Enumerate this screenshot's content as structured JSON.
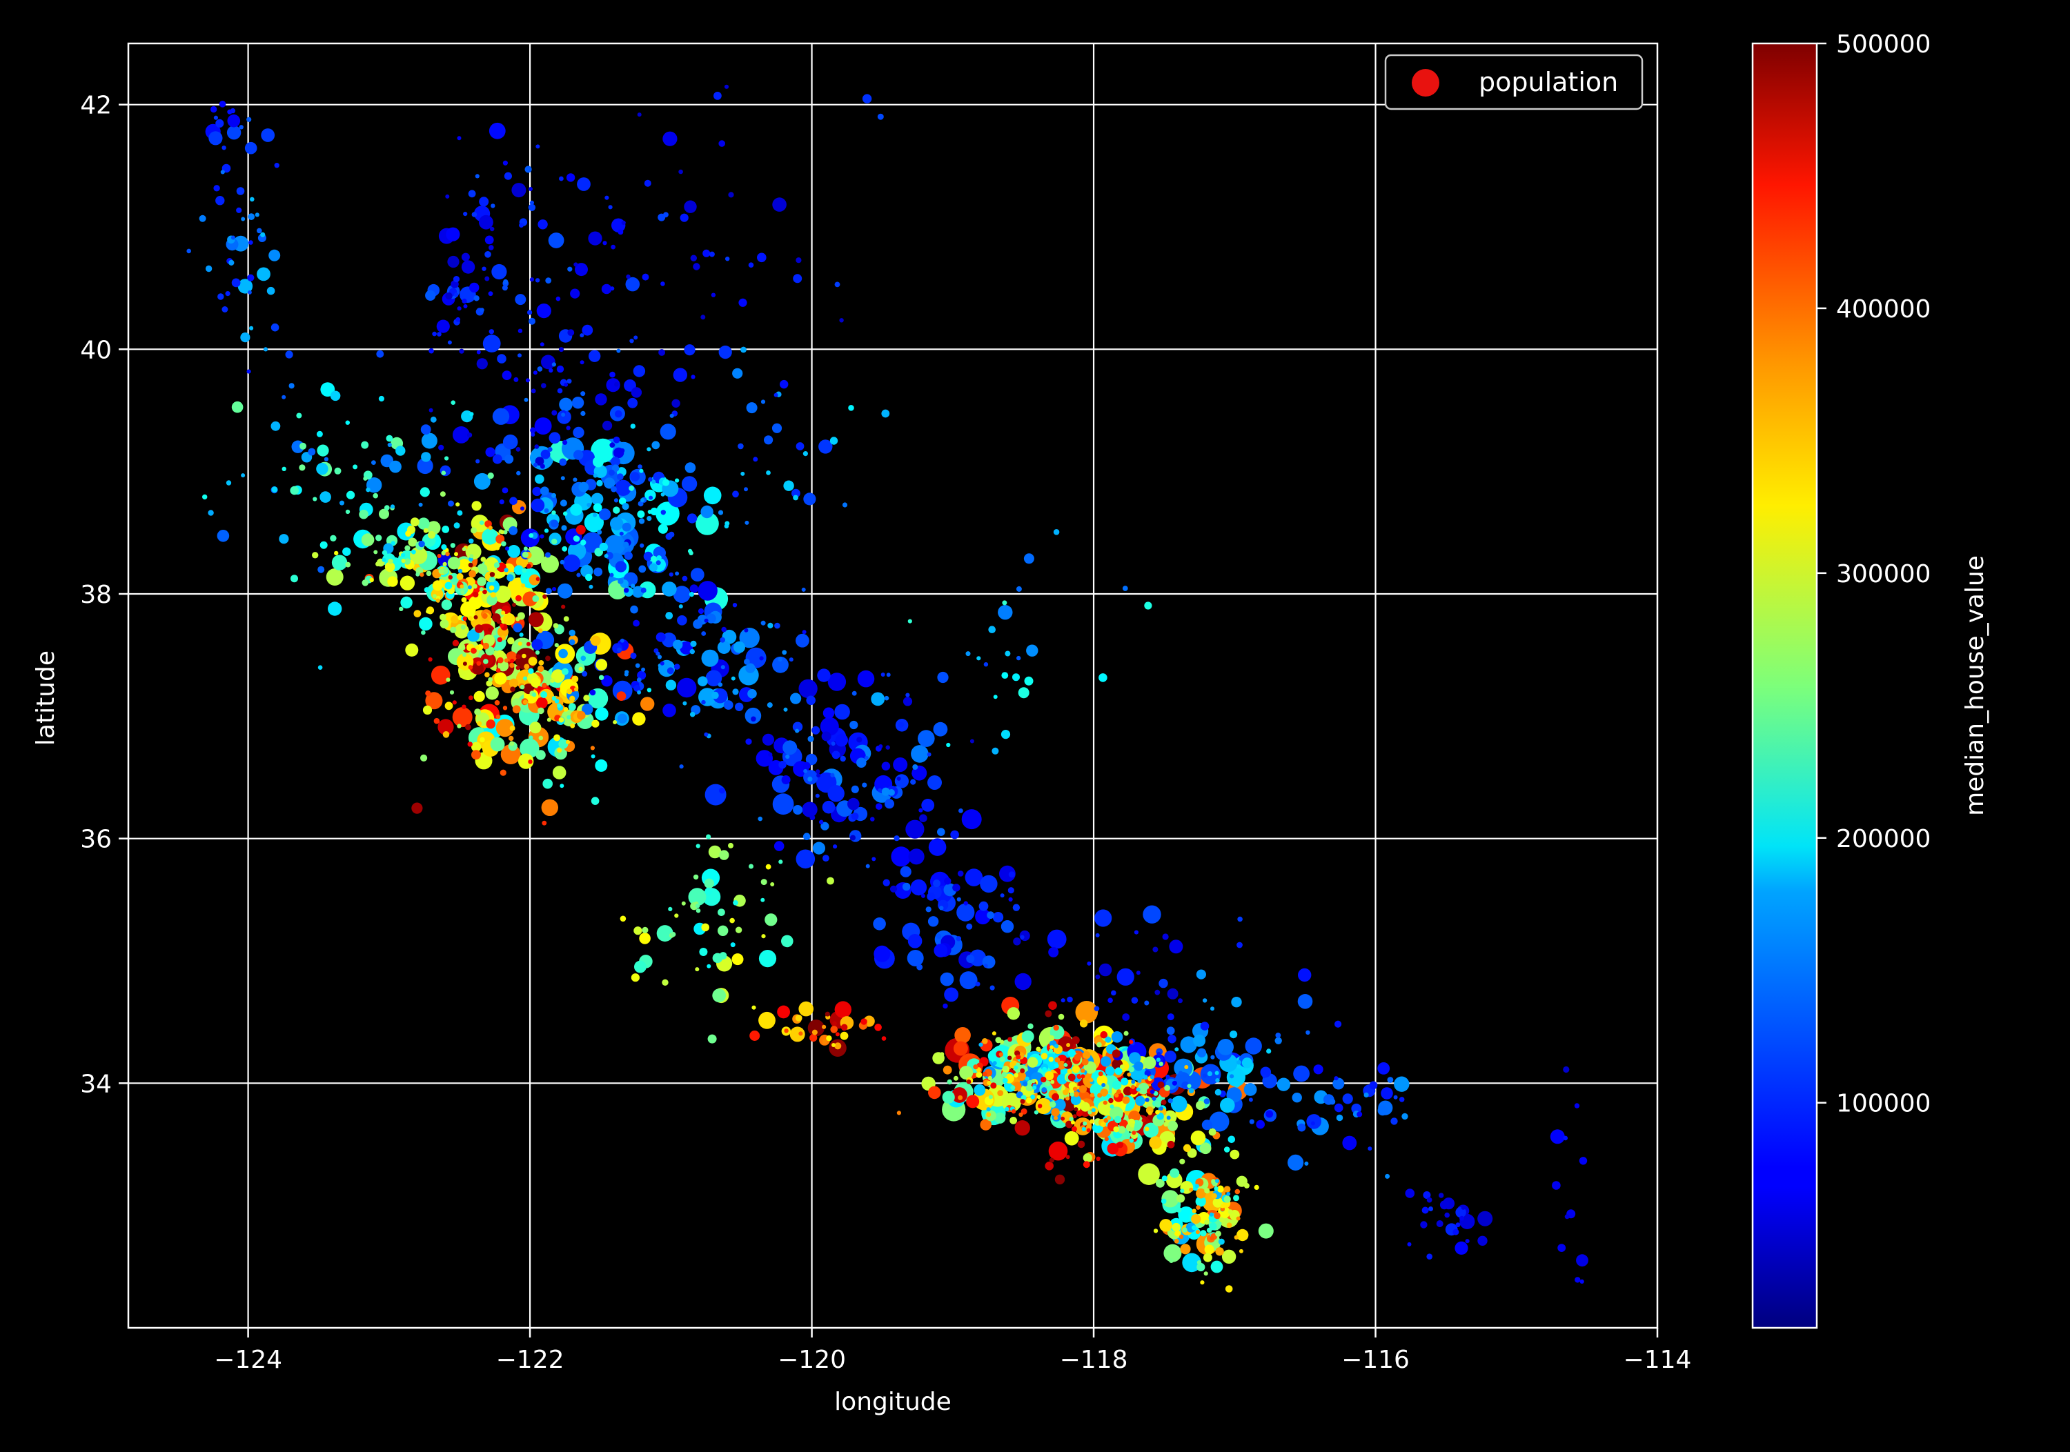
{
  "chart_data": {
    "type": "scatter",
    "title": "",
    "xlabel": "longitude",
    "ylabel": "latitude",
    "xlim": [
      -124.85,
      -114.0
    ],
    "ylim": [
      32.0,
      42.5
    ],
    "xticks": [
      -124,
      -122,
      -120,
      -118,
      -116,
      -114
    ],
    "xtick_labels": [
      "−124",
      "−122",
      "−120",
      "−118",
      "−116",
      "−114"
    ],
    "yticks": [
      34,
      36,
      38,
      40,
      42
    ],
    "ytick_labels": [
      "34",
      "36",
      "38",
      "40",
      "42"
    ],
    "grid": true,
    "legend": {
      "position": "upper-right",
      "entries": [
        "population"
      ]
    },
    "colorbar": {
      "label": "median_house_value",
      "colormap": "jet",
      "range": [
        14999,
        500001
      ],
      "ticks": [
        100000,
        200000,
        300000,
        400000,
        500000
      ],
      "tick_labels": [
        "100000",
        "200000",
        "300000",
        "400000",
        "500000"
      ]
    },
    "colors": {
      "background": "#000000",
      "axes": "#ffffff",
      "grid": "#ffffff",
      "legend_marker": "#e8120f"
    },
    "regions": [
      {
        "x": -122.25,
        "y": 37.6,
        "sx": 0.28,
        "sy": 0.45,
        "n": 260,
        "vmin": 220000,
        "vmax": 500000,
        "smax": 14
      },
      {
        "x": -122.7,
        "y": 38.3,
        "sx": 0.35,
        "sy": 0.25,
        "n": 130,
        "vmin": 150000,
        "vmax": 330000,
        "smax": 11
      },
      {
        "x": -121.85,
        "y": 37.0,
        "sx": 0.22,
        "sy": 0.3,
        "n": 90,
        "vmin": 180000,
        "vmax": 420000,
        "smax": 12
      },
      {
        "x": -121.3,
        "y": 38.6,
        "sx": 0.35,
        "sy": 0.35,
        "n": 150,
        "vmin": 90000,
        "vmax": 220000,
        "smax": 15
      },
      {
        "x": -120.8,
        "y": 37.5,
        "sx": 0.45,
        "sy": 0.35,
        "n": 130,
        "vmin": 60000,
        "vmax": 170000,
        "smax": 12
      },
      {
        "x": -119.7,
        "y": 36.6,
        "sx": 0.4,
        "sy": 0.35,
        "n": 120,
        "vmin": 50000,
        "vmax": 140000,
        "smax": 13
      },
      {
        "x": -121.8,
        "y": 39.4,
        "sx": 0.4,
        "sy": 0.6,
        "n": 110,
        "vmin": 50000,
        "vmax": 130000,
        "smax": 11
      },
      {
        "x": -122.3,
        "y": 40.6,
        "sx": 0.3,
        "sy": 0.6,
        "n": 80,
        "vmin": 50000,
        "vmax": 120000,
        "smax": 10
      },
      {
        "x": -123.3,
        "y": 39.0,
        "sx": 0.5,
        "sy": 0.4,
        "n": 70,
        "vmin": 100000,
        "vmax": 250000,
        "smax": 9
      },
      {
        "x": -124.0,
        "y": 40.9,
        "sx": 0.15,
        "sy": 0.4,
        "n": 40,
        "vmin": 80000,
        "vmax": 170000,
        "smax": 9
      },
      {
        "x": -124.1,
        "y": 41.8,
        "sx": 0.12,
        "sy": 0.1,
        "n": 15,
        "vmin": 70000,
        "vmax": 120000,
        "smax": 9
      },
      {
        "x": -121.0,
        "y": 40.8,
        "sx": 0.6,
        "sy": 0.6,
        "n": 60,
        "vmin": 50000,
        "vmax": 110000,
        "smax": 8
      },
      {
        "x": -120.1,
        "y": 39.0,
        "sx": 0.3,
        "sy": 0.4,
        "n": 25,
        "vmin": 80000,
        "vmax": 200000,
        "smax": 9
      },
      {
        "x": -120.7,
        "y": 35.3,
        "sx": 0.25,
        "sy": 0.35,
        "n": 60,
        "vmin": 180000,
        "vmax": 320000,
        "smax": 11
      },
      {
        "x": -119.9,
        "y": 34.45,
        "sx": 0.25,
        "sy": 0.08,
        "n": 35,
        "vmin": 320000,
        "vmax": 500000,
        "smax": 10
      },
      {
        "x": -119.0,
        "y": 35.4,
        "sx": 0.3,
        "sy": 0.3,
        "n": 70,
        "vmin": 50000,
        "vmax": 120000,
        "smax": 12
      },
      {
        "x": -118.3,
        "y": 34.05,
        "sx": 0.35,
        "sy": 0.2,
        "n": 320,
        "vmin": 130000,
        "vmax": 500000,
        "smax": 15
      },
      {
        "x": -117.8,
        "y": 33.75,
        "sx": 0.25,
        "sy": 0.2,
        "n": 140,
        "vmin": 180000,
        "vmax": 500000,
        "smax": 13
      },
      {
        "x": -117.2,
        "y": 32.9,
        "sx": 0.15,
        "sy": 0.25,
        "n": 120,
        "vmin": 150000,
        "vmax": 400000,
        "smax": 13
      },
      {
        "x": -117.3,
        "y": 34.1,
        "sx": 0.35,
        "sy": 0.2,
        "n": 90,
        "vmin": 70000,
        "vmax": 180000,
        "smax": 12
      },
      {
        "x": -116.3,
        "y": 33.8,
        "sx": 0.35,
        "sy": 0.2,
        "n": 40,
        "vmin": 70000,
        "vmax": 150000,
        "smax": 10
      },
      {
        "x": -117.7,
        "y": 34.8,
        "sx": 0.4,
        "sy": 0.35,
        "n": 35,
        "vmin": 50000,
        "vmax": 110000,
        "smax": 11
      },
      {
        "x": -115.5,
        "y": 32.9,
        "sx": 0.15,
        "sy": 0.15,
        "n": 25,
        "vmin": 50000,
        "vmax": 100000,
        "smax": 9
      },
      {
        "x": -114.6,
        "y": 33.5,
        "sx": 0.08,
        "sy": 0.6,
        "n": 12,
        "vmin": 50000,
        "vmax": 90000,
        "smax": 8
      },
      {
        "x": -118.5,
        "y": 37.5,
        "sx": 0.4,
        "sy": 0.4,
        "n": 25,
        "vmin": 90000,
        "vmax": 220000,
        "smax": 8
      },
      {
        "x": -118.3,
        "y": 33.4,
        "sx": 0.05,
        "sy": 0.05,
        "n": 3,
        "vmin": 450000,
        "vmax": 500000,
        "smax": 6
      }
    ]
  }
}
